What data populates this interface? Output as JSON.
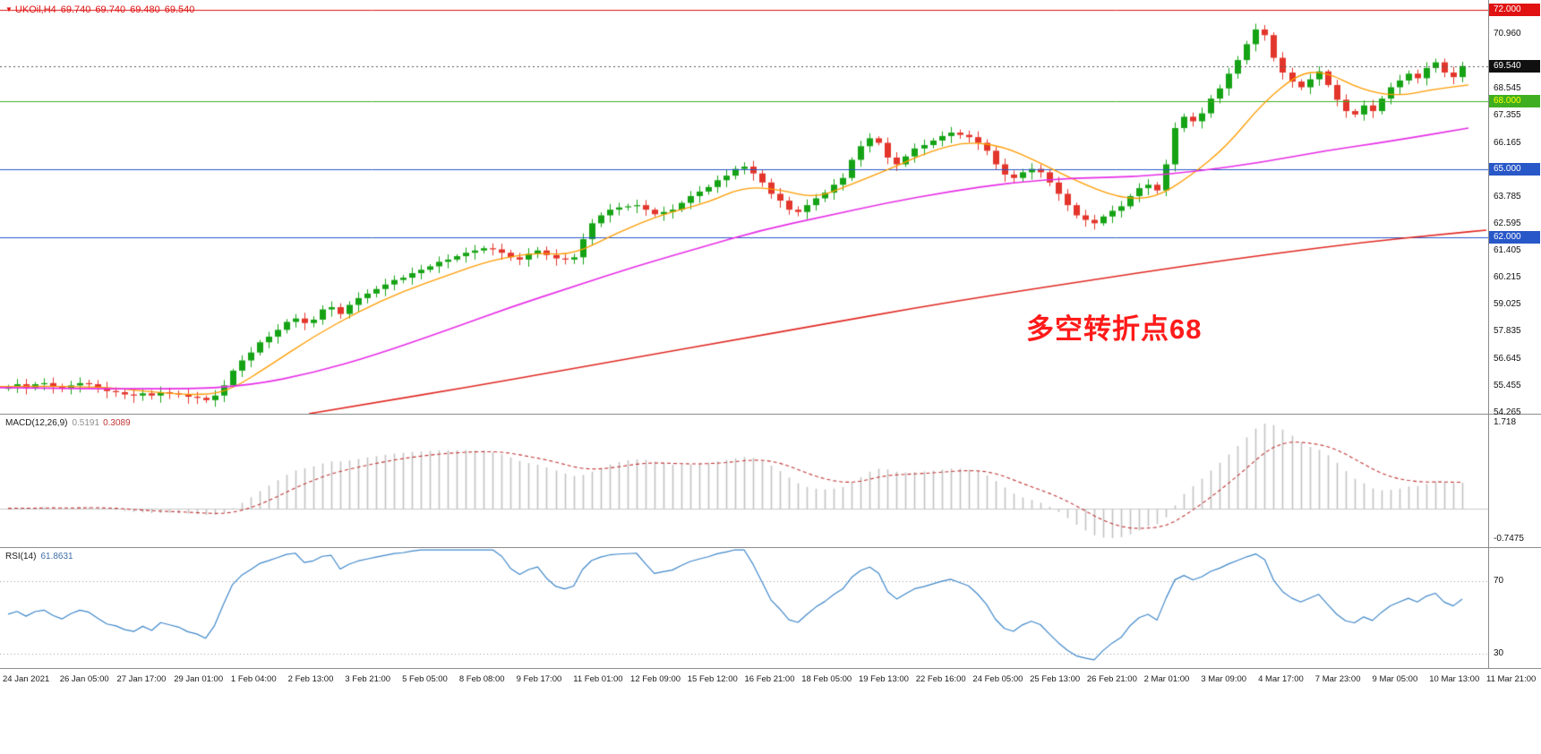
{
  "header": {
    "marker": "▼",
    "symbol": "UKOil,H4",
    "open": "69.740",
    "high": "69.740",
    "low": "69.480",
    "close": "69.540"
  },
  "annotation": {
    "text": "多空转折点68",
    "color": "#ff1a1a"
  },
  "panels": {
    "macd": {
      "label": "MACD(12,26,9)",
      "values": [
        "0.5191",
        "0.3089"
      ],
      "scale_max": "1.718",
      "scale_min": "-0.7475"
    },
    "rsi": {
      "label": "RSI(14)",
      "value": "61.8631",
      "level_labels": [
        "70",
        "30"
      ]
    }
  },
  "theme": {
    "background": "#ffffff",
    "panel_border": "#8c8c8c",
    "axis_text": "#1a1a1a",
    "title_color": "#e01212",
    "macd_histogram": "#c2c2c2",
    "macd_signal": "#c03636",
    "rsi_line": "#3f87c9"
  },
  "chart_data": {
    "type": "candlestick",
    "symbol": "UKOil",
    "timeframe": "H4",
    "ohlc": {
      "open": 69.74,
      "high": 69.74,
      "low": 69.48,
      "close": 69.54
    },
    "y_range": [
      54.2,
      72.45
    ],
    "price_axis_labels": [
      "70.960",
      "68.545",
      "67.355",
      "66.165",
      "63.785",
      "62.595",
      "61.405",
      "60.215",
      "59.025",
      "57.835",
      "56.645",
      "55.455",
      "54.265"
    ],
    "time_labels": [
      "24 Jan 2021",
      "26 Jan 05:00",
      "27 Jan 17:00",
      "29 Jan 01:00",
      "1 Feb 04:00",
      "2 Feb 13:00",
      "3 Feb 21:00",
      "5 Feb 05:00",
      "8 Feb 08:00",
      "9 Feb 17:00",
      "11 Feb 01:00",
      "12 Feb 09:00",
      "15 Feb 12:00",
      "16 Feb 21:00",
      "18 Feb 05:00",
      "19 Feb 13:00",
      "22 Feb 16:00",
      "24 Feb 05:00",
      "25 Feb 13:00",
      "26 Feb 21:00",
      "2 Mar 01:00",
      "3 Mar 09:00",
      "4 Mar 17:00",
      "7 Mar 23:00",
      "9 Mar 05:00",
      "10 Mar 13:00",
      "11 Mar 21:00"
    ],
    "candles": {
      "first_open": 55.3,
      "up_color": "#15a315",
      "down_color": "#e3352b",
      "close": [
        55.4,
        55.5,
        55.35,
        55.5,
        55.55,
        55.4,
        55.3,
        55.45,
        55.55,
        55.5,
        55.35,
        55.2,
        55.15,
        55.05,
        55.0,
        55.1,
        55.0,
        55.15,
        55.1,
        55.05,
        54.95,
        54.9,
        54.8,
        55.0,
        55.45,
        56.1,
        56.55,
        56.9,
        57.35,
        57.6,
        57.9,
        58.25,
        58.4,
        58.2,
        58.35,
        58.8,
        58.9,
        58.6,
        59.0,
        59.3,
        59.5,
        59.7,
        59.9,
        60.1,
        60.2,
        60.4,
        60.55,
        60.7,
        60.9,
        61.0,
        61.15,
        61.3,
        61.4,
        61.5,
        61.45,
        61.3,
        61.1,
        61.0,
        61.25,
        61.4,
        61.2,
        61.05,
        61.0,
        61.1,
        61.9,
        62.6,
        62.95,
        63.2,
        63.3,
        63.35,
        63.4,
        63.2,
        63.0,
        63.1,
        63.2,
        63.5,
        63.8,
        64.0,
        64.2,
        64.5,
        64.7,
        65.0,
        65.1,
        64.8,
        64.4,
        63.9,
        63.6,
        63.2,
        63.1,
        63.4,
        63.7,
        63.95,
        64.3,
        64.6,
        65.4,
        66.0,
        66.35,
        66.15,
        65.5,
        65.2,
        65.55,
        65.9,
        66.05,
        66.25,
        66.45,
        66.6,
        66.5,
        66.4,
        66.15,
        65.8,
        65.2,
        64.75,
        64.6,
        64.85,
        65.0,
        64.85,
        64.4,
        63.9,
        63.4,
        62.95,
        62.75,
        62.6,
        62.9,
        63.15,
        63.35,
        63.8,
        64.15,
        64.3,
        64.05,
        65.2,
        66.8,
        67.3,
        67.1,
        67.45,
        68.1,
        68.55,
        69.2,
        69.8,
        70.5,
        71.15,
        70.9,
        69.9,
        69.25,
        68.85,
        68.6,
        68.95,
        69.3,
        68.7,
        68.05,
        67.55,
        67.4,
        67.8,
        67.55,
        68.1,
        68.6,
        68.9,
        69.2,
        69.0,
        69.45,
        69.7,
        69.25,
        69.05,
        69.54
      ]
    },
    "moving_averages": [
      {
        "name": "ma-fast-orange",
        "color": "#ff9c00",
        "width": 1.3,
        "points": [
          [
            0,
            55.4
          ],
          [
            100,
            55.45
          ],
          [
            170,
            55.15
          ],
          [
            230,
            55.0
          ],
          [
            260,
            55.3
          ],
          [
            300,
            56.3
          ],
          [
            350,
            57.6
          ],
          [
            400,
            58.7
          ],
          [
            450,
            59.6
          ],
          [
            500,
            60.3
          ],
          [
            550,
            61.0
          ],
          [
            600,
            61.3
          ],
          [
            640,
            61.2
          ],
          [
            690,
            62.2
          ],
          [
            740,
            63.0
          ],
          [
            790,
            63.5
          ],
          [
            830,
            64.2
          ],
          [
            870,
            64.1
          ],
          [
            910,
            63.7
          ],
          [
            950,
            64.3
          ],
          [
            1000,
            65.1
          ],
          [
            1040,
            65.8
          ],
          [
            1080,
            66.2
          ],
          [
            1120,
            66.0
          ],
          [
            1160,
            65.3
          ],
          [
            1200,
            64.5
          ],
          [
            1250,
            63.7
          ],
          [
            1290,
            63.7
          ],
          [
            1330,
            64.7
          ],
          [
            1370,
            66.0
          ],
          [
            1410,
            67.9
          ],
          [
            1450,
            69.2
          ],
          [
            1480,
            69.3
          ],
          [
            1520,
            68.5
          ],
          [
            1560,
            68.2
          ],
          [
            1600,
            68.5
          ],
          [
            1640,
            68.7
          ]
        ]
      },
      {
        "name": "ma-mid-magenta",
        "color": "#e62ee6",
        "width": 1.6,
        "points": [
          [
            0,
            55.35
          ],
          [
            200,
            55.25
          ],
          [
            280,
            55.45
          ],
          [
            350,
            56.0
          ],
          [
            420,
            56.8
          ],
          [
            500,
            57.9
          ],
          [
            570,
            58.9
          ],
          [
            640,
            59.8
          ],
          [
            710,
            60.7
          ],
          [
            780,
            61.5
          ],
          [
            850,
            62.3
          ],
          [
            920,
            62.9
          ],
          [
            990,
            63.5
          ],
          [
            1060,
            64.0
          ],
          [
            1130,
            64.4
          ],
          [
            1200,
            64.6
          ],
          [
            1270,
            64.65
          ],
          [
            1340,
            64.9
          ],
          [
            1410,
            65.3
          ],
          [
            1480,
            65.8
          ],
          [
            1550,
            66.2
          ],
          [
            1640,
            66.8
          ]
        ]
      },
      {
        "name": "ma-slow-red",
        "color": "#e02822",
        "width": 1.6,
        "points": [
          [
            345,
            54.2
          ],
          [
            420,
            54.7
          ],
          [
            520,
            55.35
          ],
          [
            620,
            56.05
          ],
          [
            720,
            56.75
          ],
          [
            820,
            57.45
          ],
          [
            920,
            58.15
          ],
          [
            1020,
            58.85
          ],
          [
            1120,
            59.5
          ],
          [
            1220,
            60.1
          ],
          [
            1320,
            60.7
          ],
          [
            1420,
            61.25
          ],
          [
            1520,
            61.75
          ],
          [
            1620,
            62.15
          ],
          [
            1660,
            62.3
          ]
        ]
      }
    ],
    "hlines": [
      {
        "price": 72.0,
        "color": "#e01212",
        "style": "solid",
        "badge": {
          "text": "72.000",
          "bg": "#e01212",
          "fg": "#ffffff"
        }
      },
      {
        "price": 69.54,
        "color": "#555555",
        "style": "dotted",
        "badge": {
          "text": "69.540",
          "bg": "#101010",
          "fg": "#ffffff"
        }
      },
      {
        "price": 68.0,
        "color": "#3fae20",
        "style": "solid",
        "badge": {
          "text": "68.000",
          "bg": "#3fae20",
          "fg": "#ffff00"
        }
      },
      {
        "price": 65.0,
        "color": "#2857c8",
        "style": "solid",
        "badge": {
          "text": "65.000",
          "bg": "#2857c8",
          "fg": "#ffffff"
        }
      },
      {
        "price": 62.0,
        "color": "#2857c8",
        "style": "solid",
        "badge": {
          "text": "62.000",
          "bg": "#2857c8",
          "fg": "#ffffff"
        }
      }
    ],
    "indicators": {
      "macd": {
        "params": [
          12,
          26,
          9
        ],
        "value": 0.5191,
        "signal": 0.3089,
        "scale": [
          -0.7475,
          1.718
        ]
      },
      "rsi": {
        "period": 14,
        "value": 61.8631,
        "levels": [
          70,
          30
        ],
        "scale": [
          22,
          88
        ]
      }
    }
  }
}
